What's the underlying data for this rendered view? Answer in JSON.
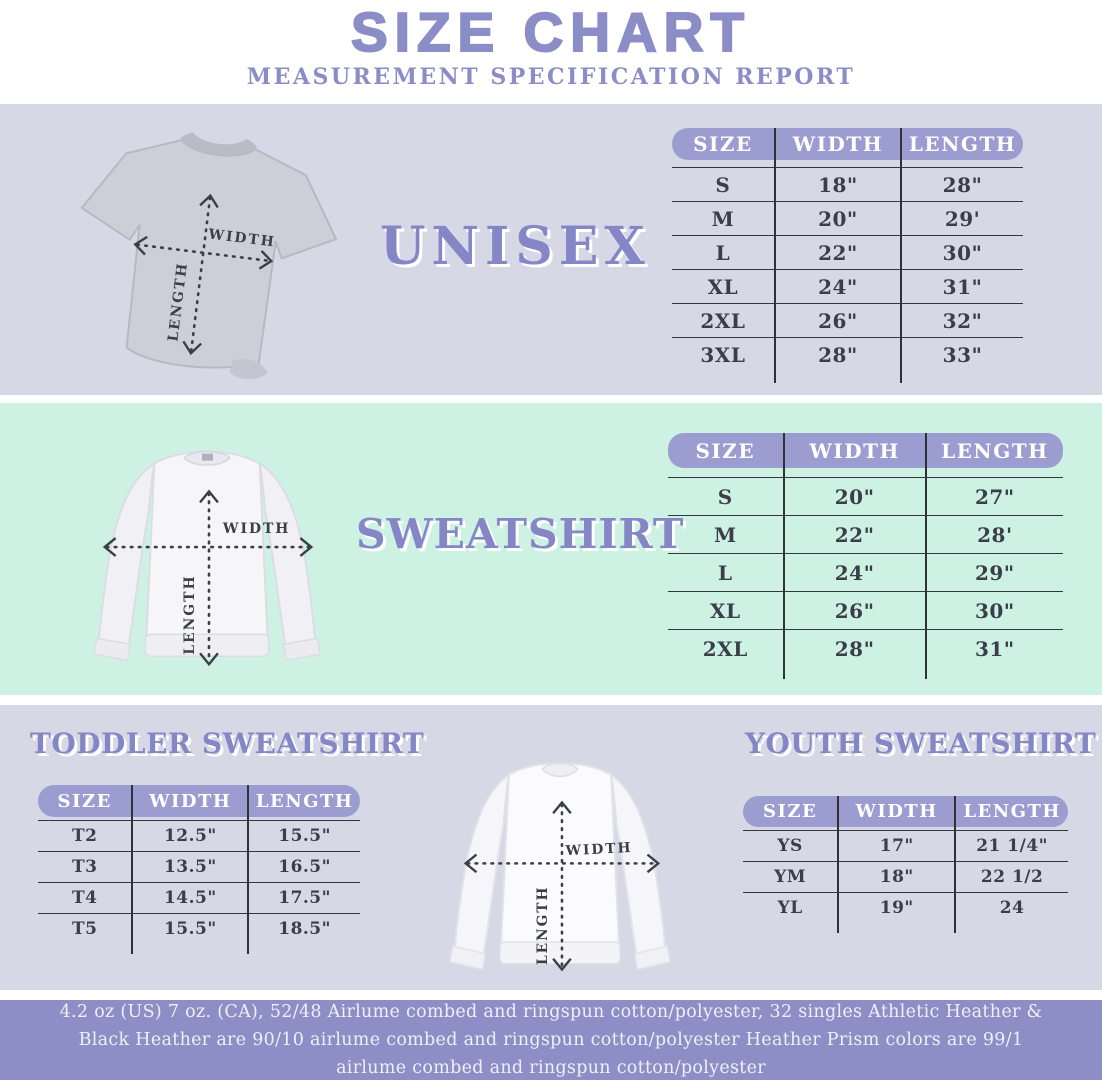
{
  "header": {
    "title": "SIZE CHART",
    "subtitle": "MEASUREMENT SPECIFICATION REPORT"
  },
  "diagram_labels": {
    "width": "WIDTH",
    "length": "LENGTH"
  },
  "sections": {
    "unisex": {
      "label": "UNISEX",
      "table": {
        "headers": [
          "SIZE",
          "WIDTH",
          "LENGTH"
        ],
        "rows": [
          [
            "S",
            "18\"",
            "28\""
          ],
          [
            "M",
            "20\"",
            "29'"
          ],
          [
            "L",
            "22\"",
            "30\""
          ],
          [
            "XL",
            "24\"",
            "31\""
          ],
          [
            "2XL",
            "26\"",
            "32\""
          ],
          [
            "3XL",
            "28\"",
            "33\""
          ]
        ]
      }
    },
    "sweatshirt": {
      "label": "SWEATSHIRT",
      "table": {
        "headers": [
          "SIZE",
          "WIDTH",
          "LENGTH"
        ],
        "rows": [
          [
            "S",
            "20\"",
            "27\""
          ],
          [
            "M",
            "22\"",
            "28'"
          ],
          [
            "L",
            "24\"",
            "29\""
          ],
          [
            "XL",
            "26\"",
            "30\""
          ],
          [
            "2XL",
            "28\"",
            "31\""
          ]
        ]
      }
    },
    "toddler": {
      "label": "TODDLER SWEATSHIRT",
      "table": {
        "headers": [
          "SIZE",
          "WIDTH",
          "LENGTH"
        ],
        "rows": [
          [
            "T2",
            "12.5\"",
            "15.5\""
          ],
          [
            "T3",
            "13.5\"",
            "16.5\""
          ],
          [
            "T4",
            "14.5\"",
            "17.5\""
          ],
          [
            "T5",
            "15.5\"",
            "18.5\""
          ]
        ]
      }
    },
    "youth": {
      "label": "YOUTH SWEATSHIRT",
      "table": {
        "headers": [
          "SIZE",
          "WIDTH",
          "LENGTH"
        ],
        "rows": [
          [
            "YS",
            "17\"",
            "21 1/4\""
          ],
          [
            "YM",
            "18\"",
            "22 1/2"
          ],
          [
            "YL",
            "19\"",
            "24"
          ]
        ]
      }
    }
  },
  "footer": {
    "text": "4.2 oz (US) 7 oz. (CA), 52/48 Airlume combed and ringspun cotton/polyester, 32 singles Athletic Heather & Black Heather are 90/10 airlume combed and ringspun cotton/polyester Heather Prism colors are 99/1 airlume combed and ringspun cotton/polyester"
  },
  "colors": {
    "accent_purple": "#8b8dc7",
    "table_header_purple": "#9b9dd0",
    "lavender_bg": "#d6d8e6",
    "mint_bg": "#cdf2e4",
    "footer_bg": "#8c8ec5",
    "table_text": "#3a3e48",
    "table_line": "#2e3138"
  }
}
